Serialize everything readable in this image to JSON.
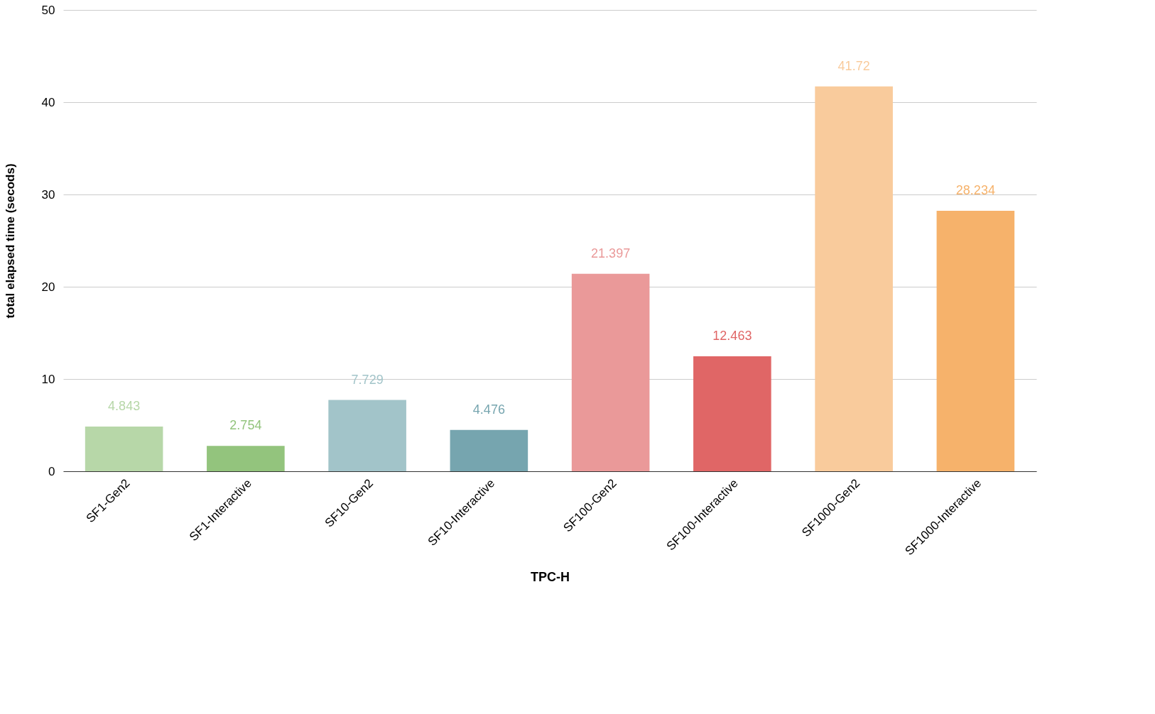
{
  "chart_data": {
    "type": "bar",
    "xlabel": "TPC-H",
    "ylabel": "total elapsed time (secods)",
    "categories": [
      "SF1-Gen2",
      "SF1-Interactive",
      "SF10-Gen2",
      "SF10-Interactive",
      "SF100-Gen2",
      "SF100-Interactive",
      "SF1000-Gen2",
      "SF1000-Interactive"
    ],
    "values": [
      4.843,
      2.754,
      7.729,
      4.476,
      21.397,
      12.463,
      41.72,
      28.234
    ],
    "colors": [
      "#b7d7a8",
      "#93c47d",
      "#a2c4c9",
      "#76a5af",
      "#ea9999",
      "#e06666",
      "#f9cb9c",
      "#f6b26b"
    ],
    "ylim": [
      0,
      50
    ],
    "yticks": [
      0,
      10,
      20,
      30,
      40,
      50
    ],
    "grid": "y",
    "legend": false,
    "data_labels": true
  }
}
